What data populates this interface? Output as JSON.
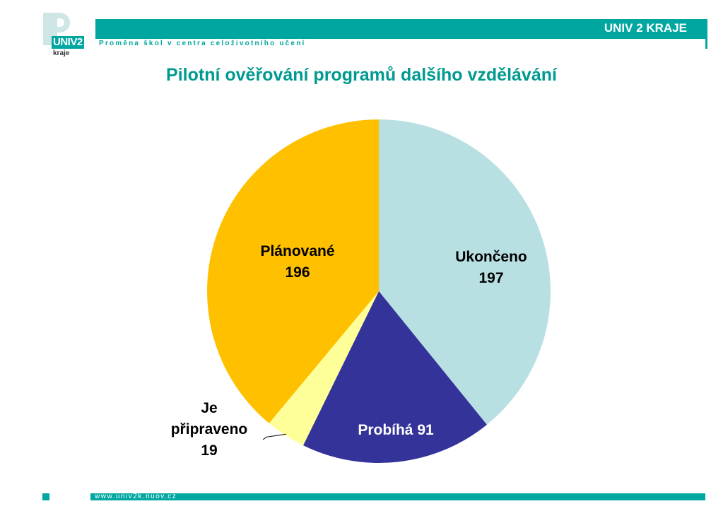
{
  "header": {
    "logo_text": "UNIV2",
    "logo_sub": "kraje",
    "brand_title": "UNIV 2 KRAJE",
    "tagline": "Proměna škol v centra celoživotního učení",
    "accent_color": "#00a7a0"
  },
  "page_title": "Pilotní ověřování programů dalšího vzdělávání",
  "footer": {
    "url": "www.univ2k.nuov.cz"
  },
  "chart_data": {
    "type": "pie",
    "title": "",
    "slices": [
      {
        "name": "Ukončeno",
        "value": 197,
        "color": "#b8e0e2",
        "label_lines": [
          "Ukončeno",
          "197"
        ]
      },
      {
        "name": "Probíhá",
        "value": 91,
        "color": "#333399",
        "label_lines": [
          "Probíhá 91"
        ]
      },
      {
        "name": "Je připraveno",
        "value": 19,
        "color": "#ffff99",
        "label_lines": [
          "Je",
          "připraveno",
          "19"
        ]
      },
      {
        "name": "Plánované",
        "value": 196,
        "color": "#ffc000",
        "label_lines": [
          "Plánované",
          "196"
        ]
      }
    ],
    "start_angle_deg": 0,
    "direction": "clockwise",
    "legend": "none"
  }
}
